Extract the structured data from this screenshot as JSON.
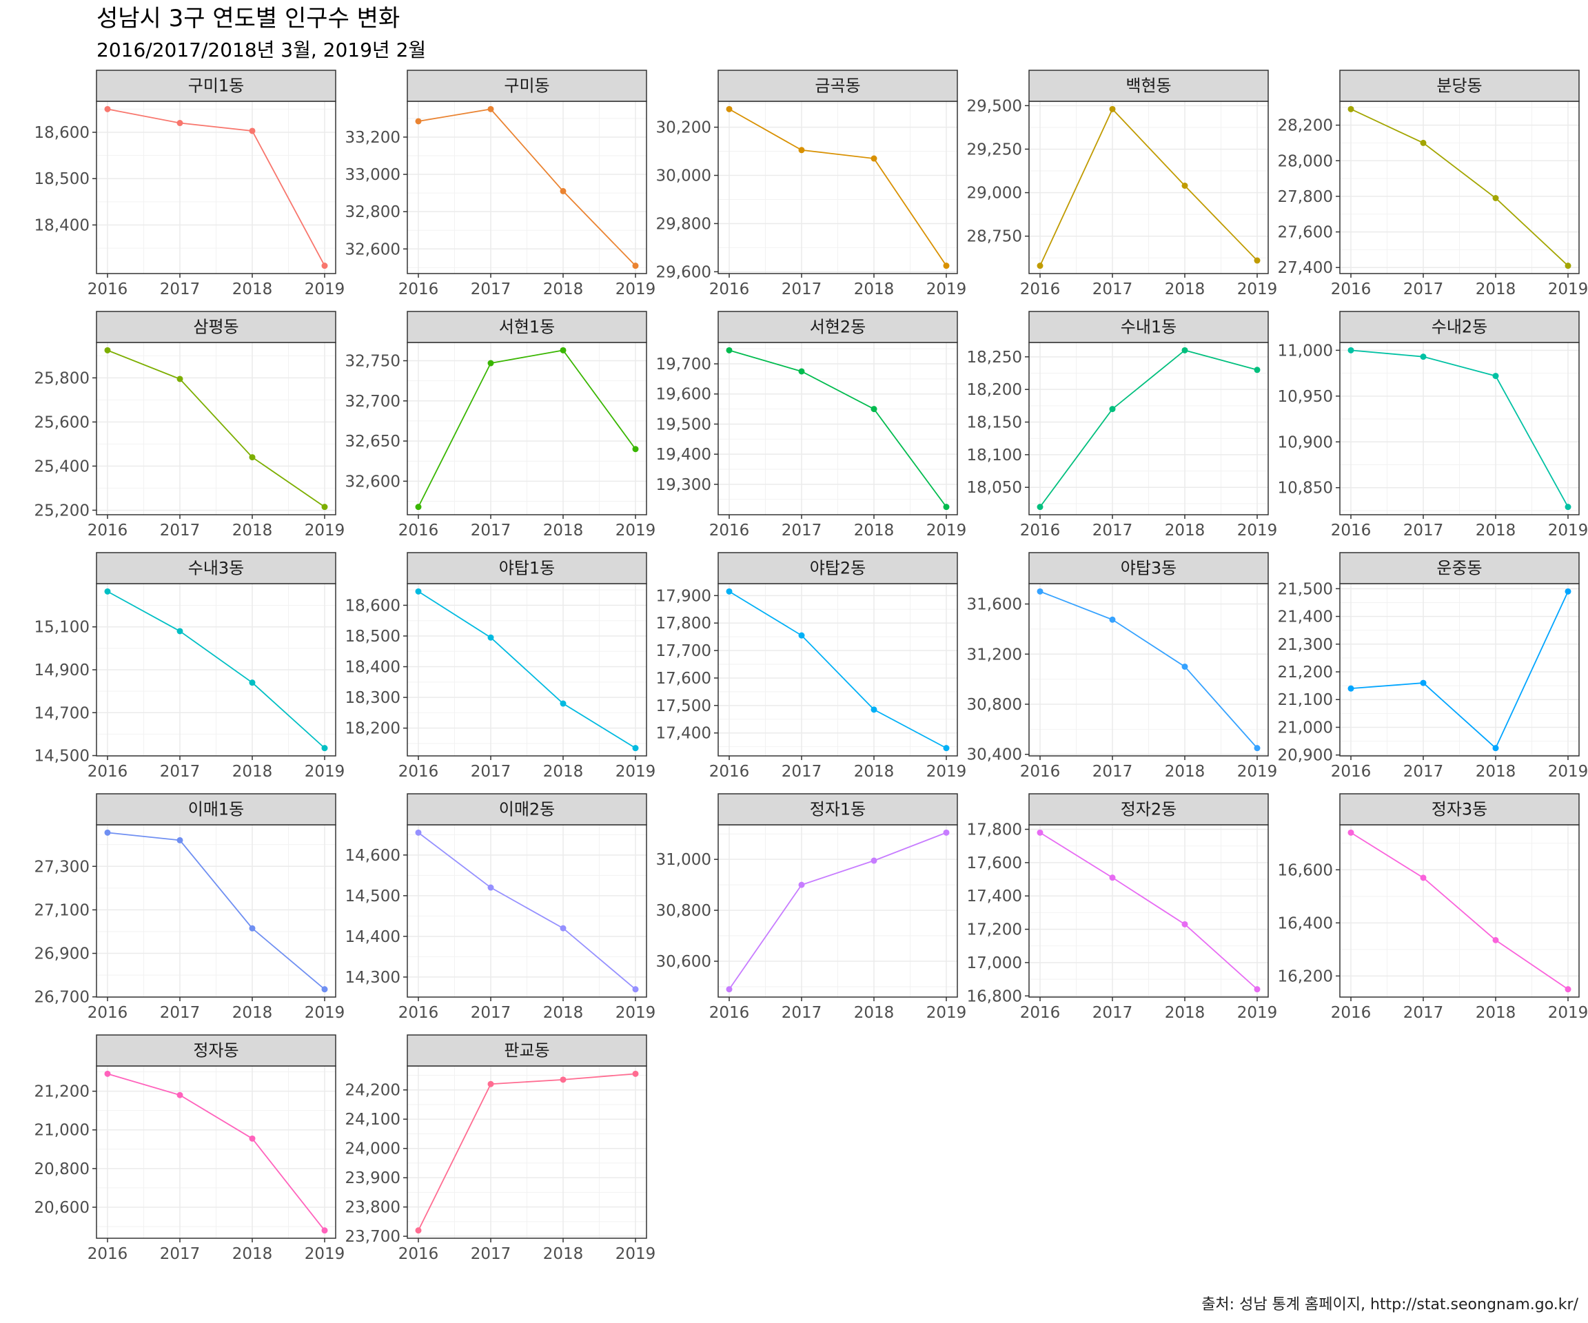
{
  "chart_data": {
    "type": "line",
    "title": "성남시 3구 연도별 인구수 변화",
    "subtitle": "2016/2017/2018년 3월, 2019년 2월",
    "caption": "출처: 성남 통계 홈페이지, http://stat.seongnam.go.kr/",
    "x": [
      2016,
      2017,
      2018,
      2019
    ],
    "x_tick_labels": [
      "2016",
      "2017",
      "2018",
      "2019"
    ],
    "facet_layout": "5 columns, free y scales",
    "grid": true,
    "legend": "none",
    "panels": [
      {
        "name": "구미1동",
        "color": "#F8766D",
        "values": [
          18650,
          18620,
          18603,
          18312
        ],
        "yticks": [
          18400,
          18500,
          18600
        ],
        "ytick_labels": [
          "18,400",
          "18,500",
          "18,600"
        ]
      },
      {
        "name": "구미동",
        "color": "#EA8331",
        "values": [
          33285,
          33350,
          32910,
          32510
        ],
        "yticks": [
          32600,
          32800,
          33000,
          33200
        ],
        "ytick_labels": [
          "32,600",
          "32,800",
          "33,000",
          "33,200"
        ]
      },
      {
        "name": "금곡동",
        "color": "#D89000",
        "values": [
          30275,
          30105,
          30070,
          29625
        ],
        "yticks": [
          29600,
          29800,
          30000,
          30200
        ],
        "ytick_labels": [
          "29,600",
          "29,800",
          "30,000",
          "30,200"
        ]
      },
      {
        "name": "백현동",
        "color": "#C09B00",
        "values": [
          28580,
          29480,
          29040,
          28610
        ],
        "yticks": [
          28750,
          29000,
          29250,
          29500
        ],
        "ytick_labels": [
          "28,750",
          "29,000",
          "29,250",
          "29,500"
        ]
      },
      {
        "name": "분당동",
        "color": "#A3A500",
        "values": [
          28290,
          28100,
          27790,
          27410
        ],
        "yticks": [
          27400,
          27600,
          27800,
          28000,
          28200
        ],
        "ytick_labels": [
          "27,400",
          "27,600",
          "27,800",
          "28,000",
          "28,200"
        ]
      },
      {
        "name": "삼평동",
        "color": "#7CAE00",
        "values": [
          25925,
          25795,
          25440,
          25215
        ],
        "yticks": [
          25200,
          25400,
          25600,
          25800
        ],
        "ytick_labels": [
          "25,200",
          "25,400",
          "25,600",
          "25,800"
        ]
      },
      {
        "name": "서현1동",
        "color": "#39B600",
        "values": [
          32568,
          32747,
          32763,
          32640
        ],
        "yticks": [
          32600,
          32650,
          32700,
          32750
        ],
        "ytick_labels": [
          "32,600",
          "32,650",
          "32,700",
          "32,750"
        ]
      },
      {
        "name": "서현2동",
        "color": "#00BB4E",
        "values": [
          19745,
          19675,
          19550,
          19225
        ],
        "yticks": [
          19300,
          19400,
          19500,
          19600,
          19700
        ],
        "ytick_labels": [
          "19,300",
          "19,400",
          "19,500",
          "19,600",
          "19,700"
        ]
      },
      {
        "name": "수내1동",
        "color": "#00BF7D",
        "values": [
          18020,
          18170,
          18260,
          18230
        ],
        "yticks": [
          18050,
          18100,
          18150,
          18200,
          18250
        ],
        "ytick_labels": [
          "18,050",
          "18,100",
          "18,150",
          "18,200",
          "18,250"
        ]
      },
      {
        "name": "수내2동",
        "color": "#00C1A3",
        "values": [
          11000,
          10993,
          10972,
          10829
        ],
        "yticks": [
          10850,
          10900,
          10950,
          11000
        ],
        "ytick_labels": [
          "10,850",
          "10,900",
          "10,950",
          "11,000"
        ]
      },
      {
        "name": "수내3동",
        "color": "#00BFC4",
        "values": [
          15265,
          15080,
          14840,
          14535
        ],
        "yticks": [
          14500,
          14700,
          14900,
          15100
        ],
        "ytick_labels": [
          "14,500",
          "14,700",
          "14,900",
          "15,100"
        ]
      },
      {
        "name": "야탑1동",
        "color": "#00BAE0",
        "values": [
          18645,
          18495,
          18280,
          18135
        ],
        "yticks": [
          18200,
          18300,
          18400,
          18500,
          18600
        ],
        "ytick_labels": [
          "18,200",
          "18,300",
          "18,400",
          "18,500",
          "18,600"
        ]
      },
      {
        "name": "야탑2동",
        "color": "#00B0F6",
        "values": [
          17915,
          17755,
          17485,
          17345
        ],
        "yticks": [
          17400,
          17500,
          17600,
          17700,
          17800,
          17900
        ],
        "ytick_labels": [
          "17,400",
          "17,500",
          "17,600",
          "17,700",
          "17,800",
          "17,900"
        ]
      },
      {
        "name": "야탑3동",
        "color": "#35A2FF",
        "values": [
          31700,
          31475,
          31100,
          30450
        ],
        "yticks": [
          30400,
          30800,
          31200,
          31600
        ],
        "ytick_labels": [
          "30,400",
          "30,800",
          "31,200",
          "31,600"
        ]
      },
      {
        "name": "운중동",
        "color": "#00A5FF",
        "values": [
          21140,
          21160,
          20925,
          21490
        ],
        "yticks": [
          20900,
          21000,
          21100,
          21200,
          21300,
          21400,
          21500
        ],
        "ytick_labels": [
          "20,900",
          "21,000",
          "21,100",
          "21,200",
          "21,300",
          "21,400",
          "21,500"
        ]
      },
      {
        "name": "이매1동",
        "color": "#6F8FF2",
        "values": [
          27455,
          27420,
          27015,
          26735
        ],
        "yticks": [
          26700,
          26900,
          27100,
          27300
        ],
        "ytick_labels": [
          "26,700",
          "26,900",
          "27,100",
          "27,300"
        ]
      },
      {
        "name": "이매2동",
        "color": "#9590FF",
        "values": [
          14655,
          14520,
          14420,
          14270
        ],
        "yticks": [
          14300,
          14400,
          14500,
          14600
        ],
        "ytick_labels": [
          "14,300",
          "14,400",
          "14,500",
          "14,600"
        ]
      },
      {
        "name": "정자1동",
        "color": "#C77CFF",
        "values": [
          30490,
          30900,
          30995,
          31105
        ],
        "yticks": [
          30600,
          30800,
          31000
        ],
        "ytick_labels": [
          "30,600",
          "30,800",
          "31,000"
        ]
      },
      {
        "name": "정자2동",
        "color": "#E76BF3",
        "values": [
          17780,
          17510,
          17230,
          16840
        ],
        "yticks": [
          16800,
          17000,
          17200,
          17400,
          17600,
          17800
        ],
        "ytick_labels": [
          "16,800",
          "17,000",
          "17,200",
          "17,400",
          "17,600",
          "17,800"
        ]
      },
      {
        "name": "정자3동",
        "color": "#FA62DB",
        "values": [
          16740,
          16570,
          16335,
          16150
        ],
        "yticks": [
          16200,
          16400,
          16600
        ],
        "ytick_labels": [
          "16,200",
          "16,400",
          "16,600"
        ]
      },
      {
        "name": "정자동",
        "color": "#FF62BC",
        "values": [
          21290,
          21180,
          20955,
          20480
        ],
        "yticks": [
          20600,
          20800,
          21000,
          21200
        ],
        "ytick_labels": [
          "20,600",
          "20,800",
          "21,000",
          "21,200"
        ]
      },
      {
        "name": "판교동",
        "color": "#FF6C91",
        "values": [
          23720,
          24220,
          24235,
          24255
        ],
        "yticks": [
          23700,
          23800,
          23900,
          24000,
          24100,
          24200
        ],
        "ytick_labels": [
          "23,700",
          "23,800",
          "23,900",
          "24,000",
          "24,100",
          "24,200"
        ]
      }
    ]
  }
}
